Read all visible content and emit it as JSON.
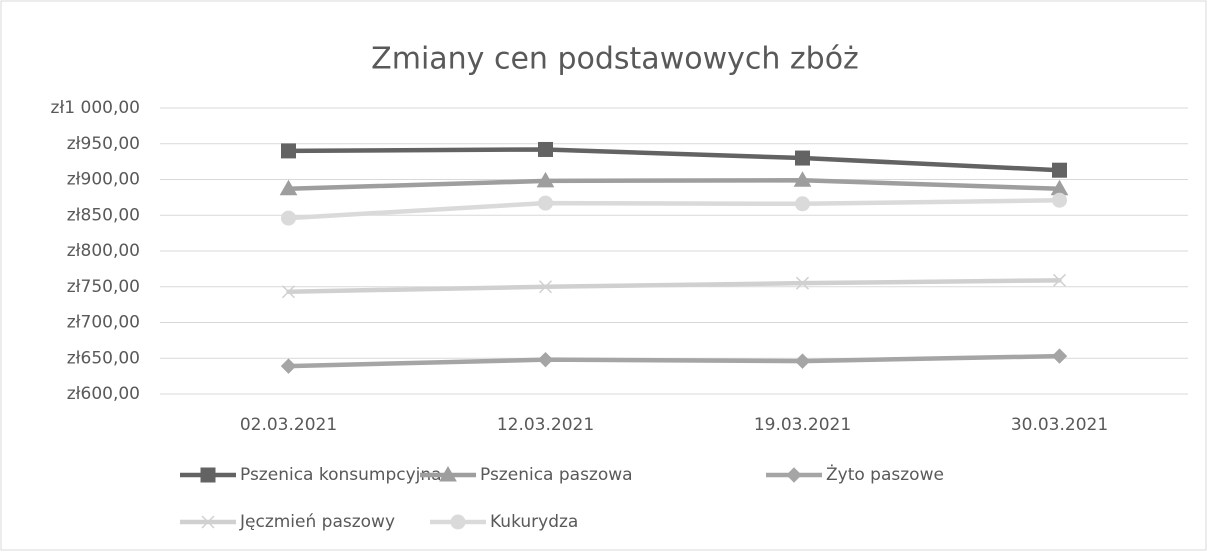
{
  "chart_data": {
    "type": "line",
    "title": "Zmiany cen podstawowych zbóż",
    "categories": [
      "02.03.2021",
      "12.03.2021",
      "19.03.2021",
      "30.03.2021"
    ],
    "series": [
      {
        "name": "Pszenica konsumpcyjna",
        "color": "#636363",
        "marker": "square",
        "values": [
          940,
          942,
          930,
          913
        ]
      },
      {
        "name": "Pszenica paszowa",
        "color": "#9e9e9e",
        "marker": "triangle",
        "values": [
          887,
          898,
          899,
          887
        ]
      },
      {
        "name": "Żyto paszowe",
        "color": "#a5a5a5",
        "marker": "diamond",
        "values": [
          639,
          648,
          646,
          653
        ]
      },
      {
        "name": "Jęczmień paszowy",
        "color": "#d0d0d0",
        "marker": "x",
        "values": [
          743,
          750,
          755,
          759
        ]
      },
      {
        "name": "Kukurydza",
        "color": "#dadada",
        "marker": "circle",
        "values": [
          846,
          867,
          866,
          871
        ]
      }
    ],
    "ylim": [
      600,
      1000
    ],
    "yticks": [
      {
        "value": 600,
        "label": "zł600,00"
      },
      {
        "value": 650,
        "label": "zł650,00"
      },
      {
        "value": 700,
        "label": "zł700,00"
      },
      {
        "value": 750,
        "label": "zł750,00"
      },
      {
        "value": 800,
        "label": "zł800,00"
      },
      {
        "value": 850,
        "label": "zł850,00"
      },
      {
        "value": 900,
        "label": "zł900,00"
      },
      {
        "value": 950,
        "label": "zł950,00"
      },
      {
        "value": 1000,
        "label": "zł1 000,00"
      }
    ],
    "grid": true,
    "legend": "bottom"
  }
}
